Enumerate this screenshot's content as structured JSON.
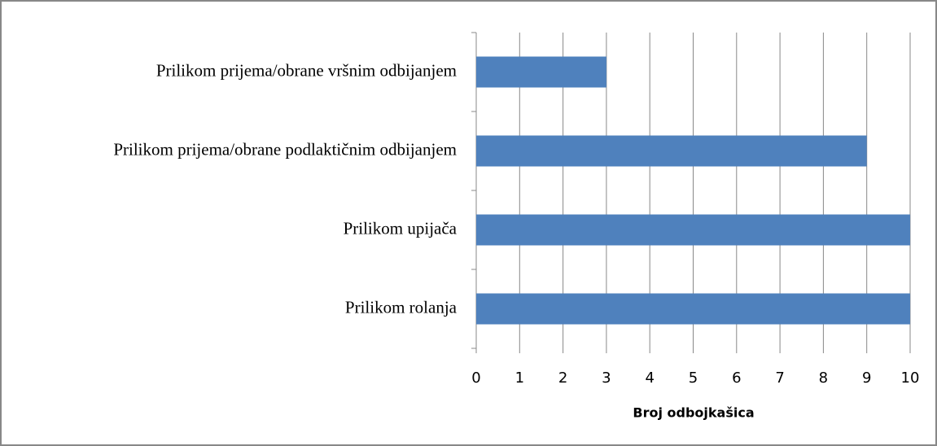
{
  "chart_data": {
    "type": "bar",
    "orientation": "horizontal",
    "categories": [
      "Prilikom prijema/obrane vršnim odbijanjem",
      "Prilikom prijema/obrane podlaktičnim odbijanjem",
      "Prilikom upijača",
      "Prilikom rolanja"
    ],
    "values": [
      3,
      9,
      10,
      10
    ],
    "color": "#4f81bd",
    "xlabel": "Broj odbojkašica",
    "xlim": [
      0,
      10
    ],
    "xticks": [
      0,
      1,
      2,
      3,
      4,
      5,
      6,
      7,
      8,
      9,
      10
    ],
    "grid": true
  }
}
